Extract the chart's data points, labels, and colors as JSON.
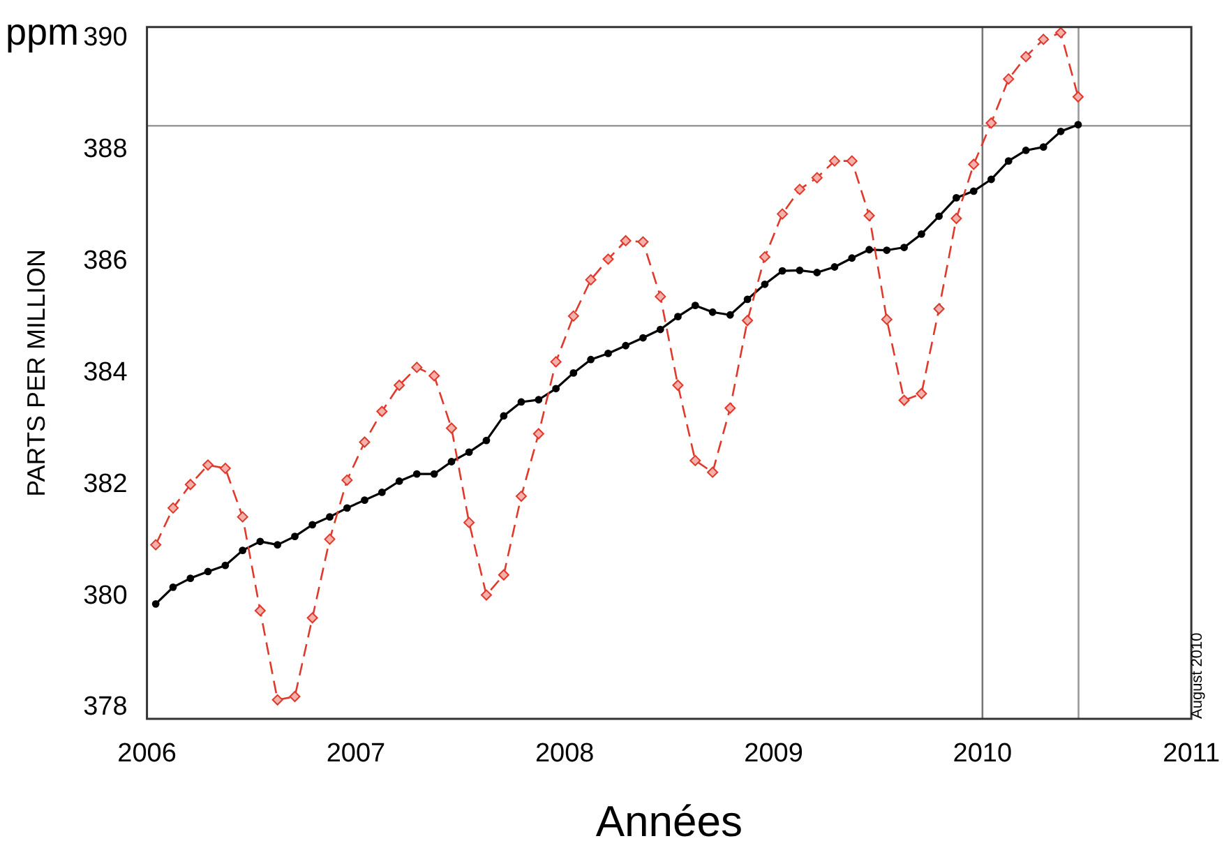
{
  "chart_data": {
    "type": "line",
    "xlabel": "Années",
    "ylabel": "PARTS PER MILLION",
    "annotations": [
      "ppm",
      "August 2010"
    ],
    "x": [
      2006.042,
      2006.125,
      2006.208,
      2006.292,
      2006.375,
      2006.458,
      2006.542,
      2006.625,
      2006.708,
      2006.792,
      2006.875,
      2006.958,
      2007.042,
      2007.125,
      2007.208,
      2007.292,
      2007.375,
      2007.458,
      2007.542,
      2007.625,
      2007.708,
      2007.792,
      2007.875,
      2007.958,
      2008.042,
      2008.125,
      2008.208,
      2008.292,
      2008.375,
      2008.458,
      2008.542,
      2008.625,
      2008.708,
      2008.792,
      2008.875,
      2008.958,
      2009.042,
      2009.125,
      2009.208,
      2009.292,
      2009.375,
      2009.458,
      2009.542,
      2009.625,
      2009.708,
      2009.792,
      2009.875,
      2009.958,
      2010.042,
      2010.125,
      2010.208,
      2010.292,
      2010.375,
      2010.458
    ],
    "series": [
      {
        "color": "#e0392b",
        "marker": "diamond",
        "line_style": "dashed",
        "values": [
          380.92,
          381.58,
          382.0,
          382.35,
          382.29,
          381.42,
          379.74,
          378.14,
          378.2,
          379.61,
          381.02,
          382.08,
          382.76,
          383.31,
          383.78,
          384.1,
          383.95,
          383.01,
          381.32,
          380.02,
          380.38,
          381.79,
          382.91,
          384.2,
          385.02,
          385.67,
          386.04,
          386.37,
          386.35,
          385.37,
          383.78,
          382.43,
          382.22,
          383.37,
          384.94,
          386.08,
          386.85,
          387.29,
          387.5,
          387.8,
          387.8,
          386.82,
          384.96,
          383.51,
          383.63,
          385.15,
          386.77,
          387.74,
          388.48,
          389.27,
          389.67,
          389.98,
          390.1,
          388.95
        ]
      },
      {
        "color": "#000000",
        "marker": "circle",
        "line_style": "solid",
        "values": [
          379.86,
          380.16,
          380.32,
          380.44,
          380.55,
          380.82,
          380.98,
          380.92,
          381.07,
          381.28,
          381.42,
          381.58,
          381.72,
          381.86,
          382.06,
          382.19,
          382.19,
          382.41,
          382.58,
          382.79,
          383.23,
          383.48,
          383.52,
          383.72,
          384.0,
          384.24,
          384.35,
          384.49,
          384.63,
          384.78,
          385.01,
          385.21,
          385.09,
          385.04,
          385.32,
          385.59,
          385.83,
          385.84,
          385.8,
          385.9,
          386.06,
          386.21,
          386.2,
          386.25,
          386.49,
          386.81,
          387.14,
          387.26,
          387.47,
          387.8,
          387.99,
          388.05,
          388.33,
          388.45
        ]
      }
    ],
    "xlim": [
      2006,
      2011
    ],
    "xticks": [
      2006,
      2007,
      2008,
      2009,
      2010,
      2011
    ],
    "ylim": [
      377.8,
      390.2
    ],
    "yticks": [
      378,
      380,
      382,
      384,
      386,
      388,
      390
    ],
    "ref_lines": [
      {
        "axis": "x",
        "value": 2010,
        "color": "#777777"
      },
      {
        "axis": "x",
        "value": 2010.46,
        "color": "#999999"
      },
      {
        "axis": "y",
        "value": 388.43,
        "color": "#999999"
      }
    ]
  }
}
